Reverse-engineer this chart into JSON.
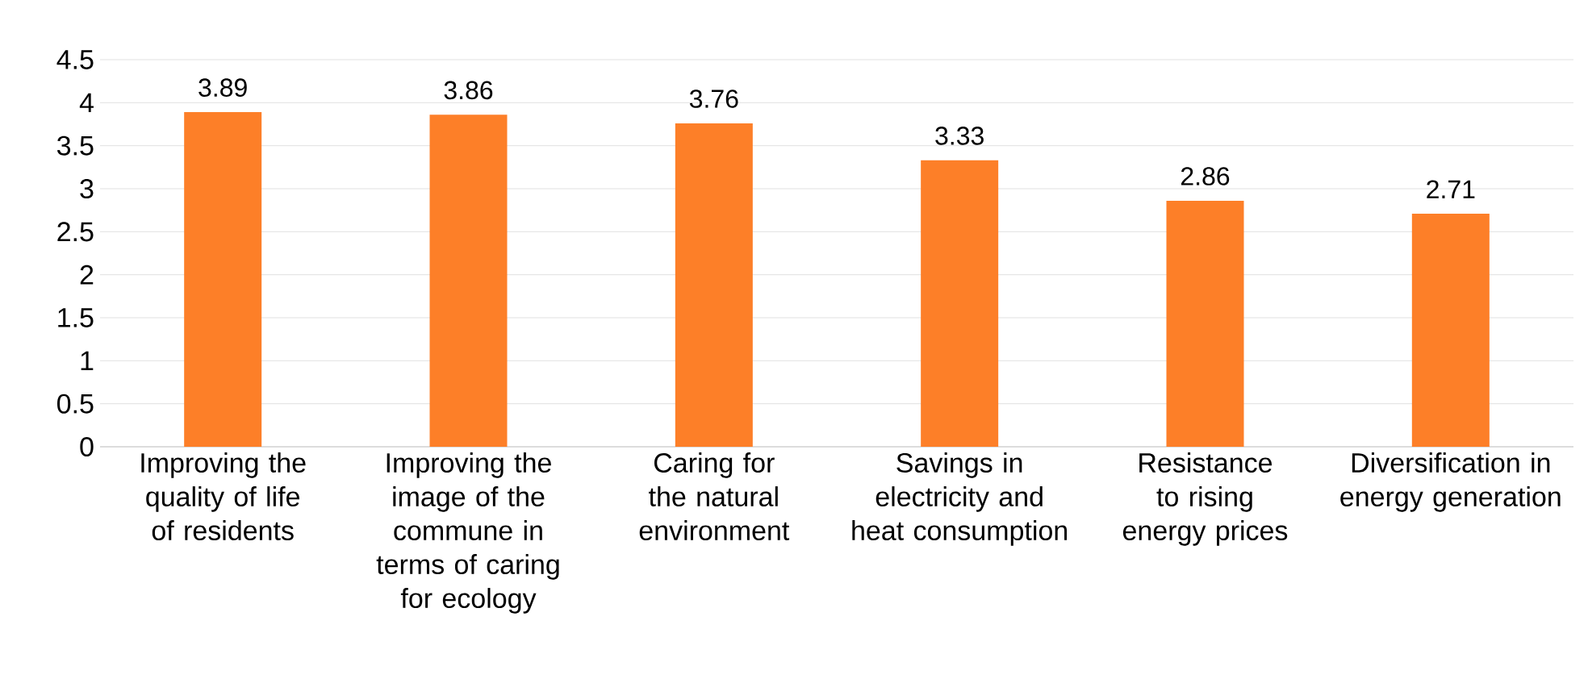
{
  "chart_data": {
    "type": "bar",
    "categories": [
      "Improving the quality of life of residents",
      "Improving the image of the commune in terms of caring for ecology",
      "Caring for the natural environment",
      "Savings in electricity and heat consumption",
      "Resistance to rising energy prices",
      "Diversification in energy generation"
    ],
    "values": [
      3.89,
      3.86,
      3.76,
      3.33,
      2.86,
      2.71
    ],
    "color": "#fd7f28",
    "ylim": [
      0,
      4.5
    ],
    "yticks": [
      0,
      0.5,
      1,
      1.5,
      2,
      2.5,
      3,
      3.5,
      4,
      4.5
    ],
    "grid": "y",
    "data_labels": true
  }
}
